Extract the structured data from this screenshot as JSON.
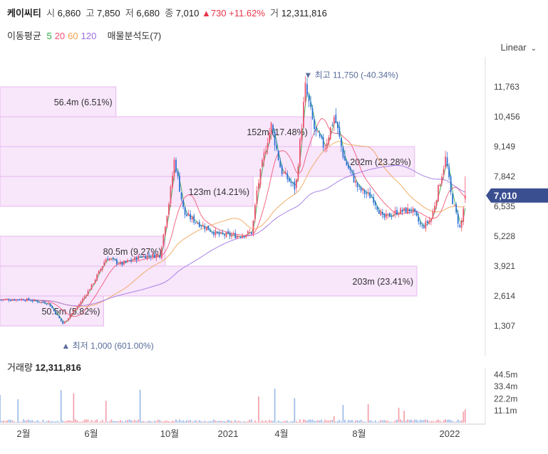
{
  "header": {
    "name": "케이씨티",
    "open_label": "시",
    "open": "6,860",
    "high_label": "고",
    "high": "7,850",
    "low_label": "저",
    "low": "6,680",
    "close_label": "종",
    "close": "7,010",
    "change": "▲730",
    "change_pct": "+11.62%",
    "vol_label": "거",
    "volume": "12,311,816"
  },
  "ma_legend": {
    "label": "이동평균",
    "periods": [
      {
        "text": "5",
        "color": "#27a844"
      },
      {
        "text": "20",
        "color": "#f0506e"
      },
      {
        "text": "60",
        "color": "#f0a050"
      },
      {
        "text": "120",
        "color": "#9a6ee0"
      }
    ],
    "profile_label": "매물분석도(7)"
  },
  "scale_toggle": "Linear",
  "colors": {
    "up": "#f0506e",
    "down": "#2b6fd6",
    "profile": "#f8e6fb",
    "profile_border": "#e6b8ee",
    "badge": "#3a4f8f"
  },
  "chart_data": {
    "type": "candlestick",
    "y_axis_ticks": [
      "11,763",
      "10,456",
      "9,149",
      "7,842",
      "6,535",
      "5,228",
      "3,921",
      "2,614",
      "1,307"
    ],
    "y_range": [
      0,
      13070
    ],
    "current_price_badge": "7,010",
    "max_marker": "최고 11,750 (-40.34%)",
    "min_marker": "최저 1,000 (601.00%)",
    "x_axis_ticks": [
      "2월",
      "6월",
      "10월",
      "2021",
      "4월",
      "8월",
      "2022"
    ],
    "close_trend": [
      {
        "t": 0,
        "v": 2450
      },
      {
        "t": 5,
        "v": 2470
      },
      {
        "t": 10,
        "v": 2300
      },
      {
        "t": 13,
        "v": 1400
      },
      {
        "t": 16,
        "v": 2150
      },
      {
        "t": 19,
        "v": 3100
      },
      {
        "t": 22,
        "v": 4300
      },
      {
        "t": 25,
        "v": 4000
      },
      {
        "t": 29,
        "v": 4350
      },
      {
        "t": 33,
        "v": 4400
      },
      {
        "t": 35,
        "v": 6900
      },
      {
        "t": 36,
        "v": 8600
      },
      {
        "t": 38,
        "v": 6200
      },
      {
        "t": 41,
        "v": 5800
      },
      {
        "t": 45,
        "v": 5300
      },
      {
        "t": 49,
        "v": 5250
      },
      {
        "t": 52,
        "v": 5400
      },
      {
        "t": 53,
        "v": 7200
      },
      {
        "t": 55,
        "v": 9300
      },
      {
        "t": 56,
        "v": 10100
      },
      {
        "t": 58,
        "v": 8100
      },
      {
        "t": 61,
        "v": 7300
      },
      {
        "t": 63,
        "v": 11750
      },
      {
        "t": 65,
        "v": 9800
      },
      {
        "t": 67,
        "v": 9100
      },
      {
        "t": 69,
        "v": 10500
      },
      {
        "t": 71,
        "v": 8600
      },
      {
        "t": 74,
        "v": 7300
      },
      {
        "t": 77,
        "v": 6900
      },
      {
        "t": 79,
        "v": 6000
      },
      {
        "t": 82,
        "v": 6300
      },
      {
        "t": 85,
        "v": 6400
      },
      {
        "t": 87,
        "v": 5600
      },
      {
        "t": 89,
        "v": 6000
      },
      {
        "t": 92,
        "v": 8700
      },
      {
        "t": 93,
        "v": 7100
      },
      {
        "t": 94,
        "v": 6300
      },
      {
        "t": 95,
        "v": 5500
      },
      {
        "t": 96,
        "v": 7010
      }
    ],
    "volume_profile": [
      {
        "label": "56.4m (6.51%)",
        "from": 10456,
        "to": 11763,
        "pct": 6.51
      },
      {
        "label": "152m (17.48%)",
        "from": 9149,
        "to": 10456,
        "pct": 17.48
      },
      {
        "label": "202m (23.28%)",
        "from": 7842,
        "to": 9149,
        "pct": 23.28
      },
      {
        "label": "123m (14.21%)",
        "from": 6535,
        "to": 7842,
        "pct": 14.21
      },
      {
        "label": "80.5m (9.27%)",
        "from": 3921,
        "to": 5228,
        "pct": 9.27
      },
      {
        "label": "203m (23.41%)",
        "from": 2614,
        "to": 3921,
        "pct": 23.41
      },
      {
        "label": "50.5m (5.82%)",
        "from": 1307,
        "to": 2614,
        "pct": 5.82
      }
    ],
    "volume_panel": {
      "title": "거래량",
      "value": "12,311,816",
      "y_ticks": [
        "44.5m",
        "33.4m",
        "22.2m",
        "11.1m"
      ]
    }
  }
}
